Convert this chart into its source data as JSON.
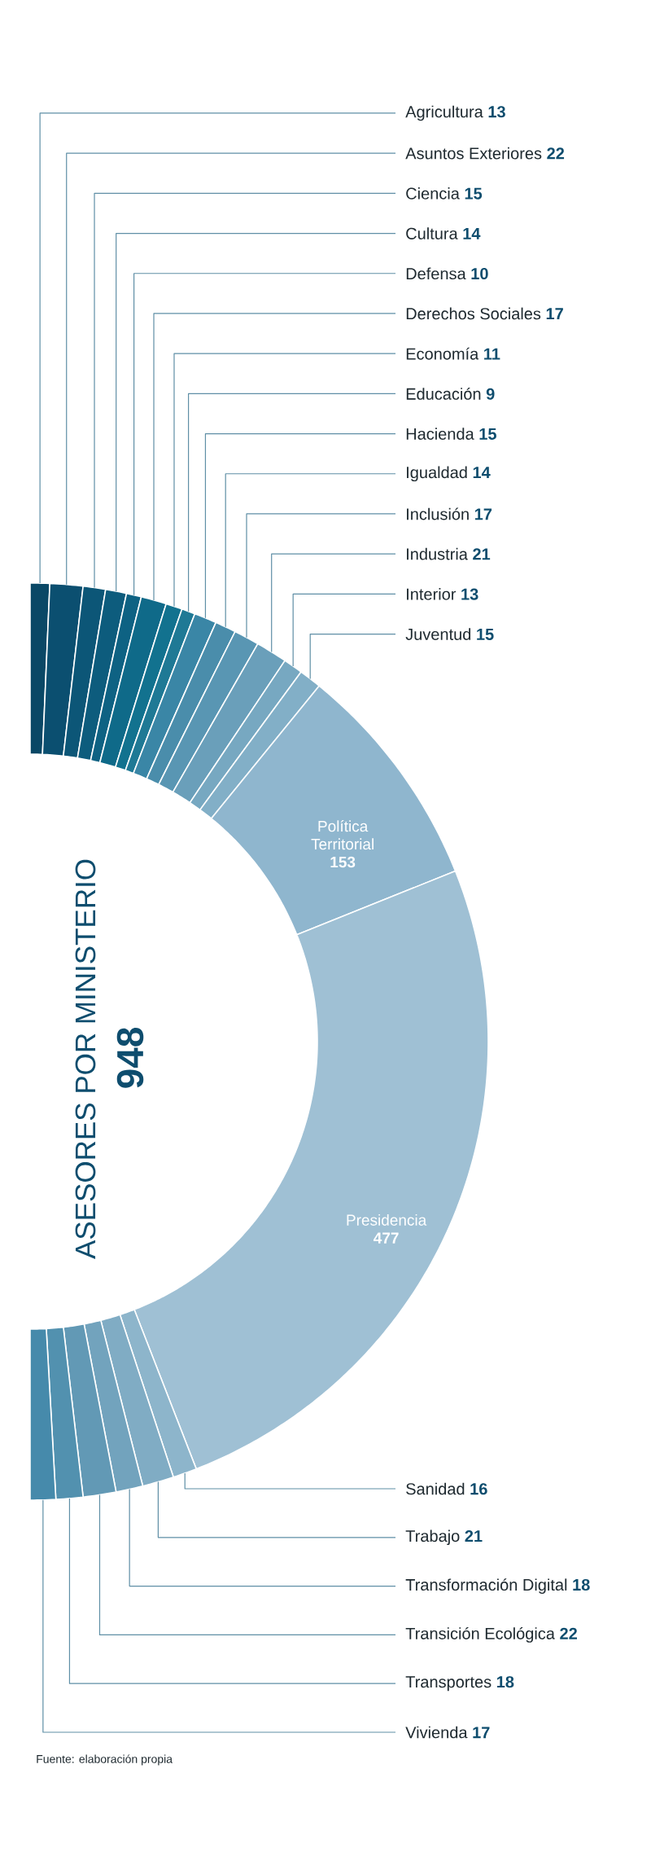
{
  "chart_data": {
    "type": "donut",
    "title": "ASESORES POR MINISTERIO",
    "subtitle": "948",
    "categories": [
      "Agricultura",
      "Asuntos Exteriores",
      "Ciencia",
      "Cultura",
      "Defensa",
      "Derechos Sociales",
      "Economía",
      "Educación",
      "Hacienda",
      "Igualdad",
      "Inclusión",
      "Industria",
      "Interior",
      "Juventud",
      "Política Territorial",
      "Presidencia",
      "Sanidad",
      "Trabajo",
      "Transformación Digital",
      "Transición Ecológica",
      "Transportes",
      "Vivienda"
    ],
    "values": [
      13,
      22,
      15,
      14,
      10,
      17,
      11,
      9,
      15,
      14,
      17,
      21,
      13,
      15,
      153,
      477,
      16,
      21,
      18,
      22,
      18,
      17
    ],
    "colors": [
      "#0a4866",
      "#0b4f70",
      "#0c5677",
      "#0d5c7d",
      "#0e6283",
      "#0f6a89",
      "#12728f",
      "#1f7995",
      "#3a86a6",
      "#4a8dab",
      "#5996b3",
      "#6a9fba",
      "#77a8c1",
      "#82afc7",
      "#8fb6ce",
      "#9fc0d4",
      "#8db5cb",
      "#80acc4",
      "#72a3bd",
      "#6299b5",
      "#5291af",
      "#468aab"
    ],
    "data_labels": true,
    "annotations": [
      "Fuente: elaboración propia"
    ]
  }
}
